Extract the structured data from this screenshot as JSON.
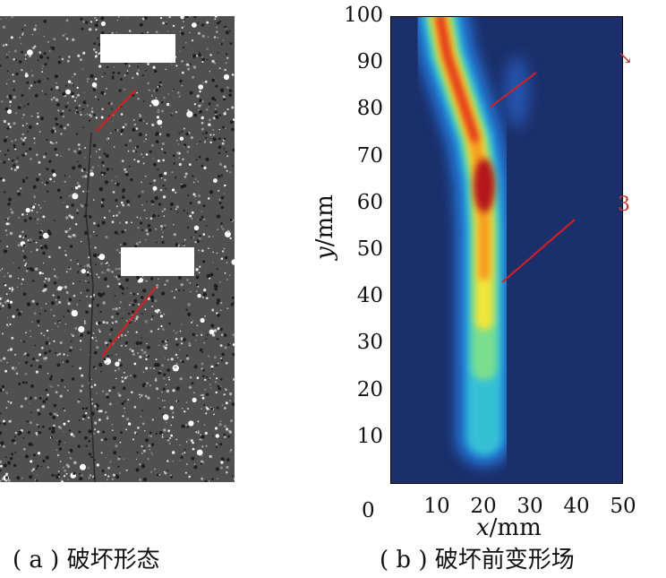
{
  "panel_a": {
    "caption": "( a ) 破坏形态"
  },
  "panel_b": {
    "caption": "( b ) 破坏前变形场",
    "xlabel_var": "x",
    "xlabel_unit": "/mm",
    "ylabel_var": "y",
    "ylabel_unit": "/mm",
    "origin_label": "0",
    "edge_marks": [
      "↘",
      "3"
    ]
  },
  "chart_data": {
    "type": "heatmap",
    "x_ticks": [
      "10",
      "20",
      "30",
      "40",
      "50"
    ],
    "y_ticks": [
      "100",
      "90",
      "80",
      "70",
      "60",
      "50",
      "40",
      "30",
      "20",
      "10"
    ],
    "xlim": [
      0,
      50
    ],
    "ylim": [
      0,
      100
    ],
    "colormap": "jet",
    "band_centerline": [
      {
        "x": 10.5,
        "y": 100
      },
      {
        "x": 12,
        "y": 92
      },
      {
        "x": 15,
        "y": 83
      },
      {
        "x": 18,
        "y": 74
      },
      {
        "x": 19.5,
        "y": 65
      },
      {
        "x": 20,
        "y": 55
      },
      {
        "x": 20,
        "y": 45
      },
      {
        "x": 20,
        "y": 35
      },
      {
        "x": 20,
        "y": 25
      },
      {
        "x": 20,
        "y": 10
      }
    ],
    "peak_location": {
      "x": 20,
      "y": 64
    }
  }
}
